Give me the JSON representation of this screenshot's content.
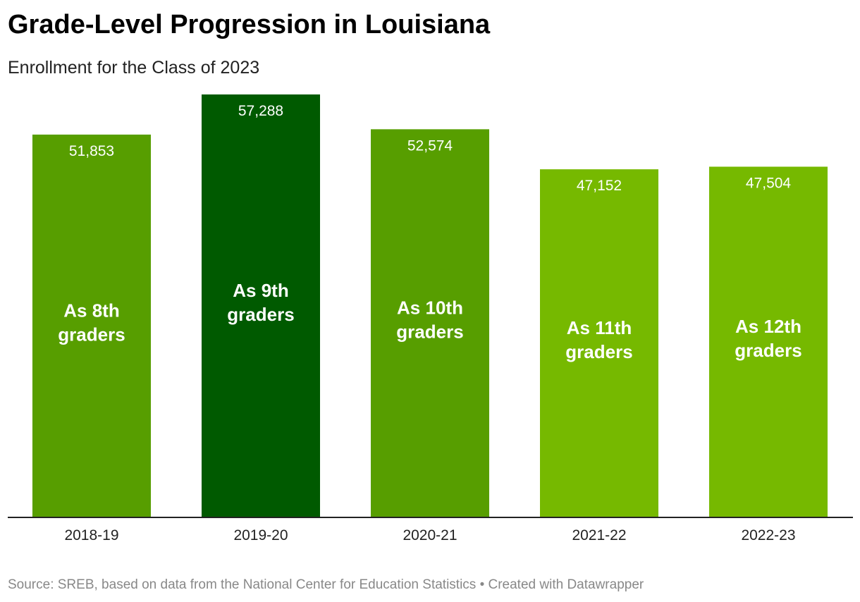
{
  "header": {
    "title": "Grade-Level Progression in Louisiana",
    "subtitle": "Enrollment for the Class of 2023"
  },
  "footer": {
    "source": "Source: SREB, based on data from the National Center for Education Statistics • Created with Datawrapper"
  },
  "chart_data": {
    "type": "bar",
    "title": "Grade-Level Progression in Louisiana",
    "subtitle": "Enrollment for the Class of 2023",
    "categories": [
      "2018-19",
      "2019-20",
      "2020-21",
      "2021-22",
      "2022-23"
    ],
    "values": [
      51853,
      57288,
      52574,
      47152,
      47504
    ],
    "value_labels": [
      "51,853",
      "57,288",
      "52,574",
      "47,152",
      "47,504"
    ],
    "bar_labels": [
      [
        "As 8th",
        "graders"
      ],
      [
        "As 9th",
        "graders"
      ],
      [
        "As 10th",
        "graders"
      ],
      [
        "As 11th",
        "graders"
      ],
      [
        "As 12th",
        "graders"
      ]
    ],
    "colors": [
      "#579e00",
      "#005a00",
      "#579e00",
      "#76b900",
      "#76b900"
    ],
    "ylim": [
      0,
      57288
    ],
    "grid": false,
    "legend": "none",
    "xlabel": "",
    "ylabel": ""
  }
}
